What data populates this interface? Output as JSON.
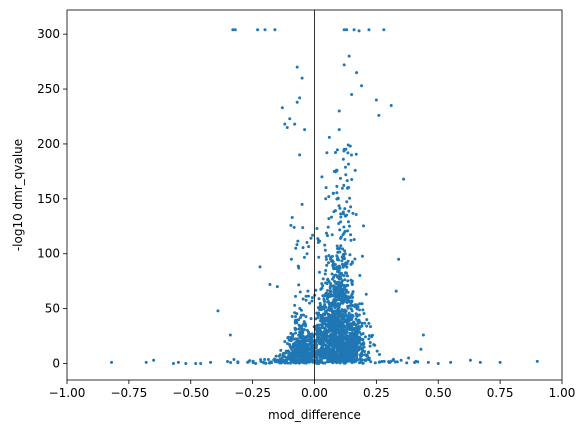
{
  "chart_data": {
    "type": "scatter",
    "title": "",
    "xlabel": "mod_difference",
    "ylabel": "-log10 dmr_qvalue",
    "xlim": [
      -1.0,
      1.0
    ],
    "ylim": [
      -15,
      322
    ],
    "xticks": [
      -1.0,
      -0.75,
      -0.5,
      -0.25,
      0.0,
      0.25,
      0.5,
      0.75,
      1.0
    ],
    "xtick_labels": [
      "−1.00",
      "−0.75",
      "−0.50",
      "−0.25",
      "0.00",
      "0.25",
      "0.50",
      "0.75",
      "1.00"
    ],
    "yticks": [
      0,
      50,
      100,
      150,
      200,
      250,
      300
    ],
    "ytick_labels": [
      "0",
      "50",
      "100",
      "150",
      "200",
      "250",
      "300"
    ],
    "vertical_reference_line_x": 0.0,
    "grid": false,
    "marker_color": "#1f77b4",
    "series": [
      {
        "values_representative": [
          {
            "x": -0.82,
            "y": 1
          },
          {
            "x": -0.68,
            "y": 1
          },
          {
            "x": -0.65,
            "y": 3
          },
          {
            "x": -0.57,
            "y": 0
          },
          {
            "x": -0.55,
            "y": 1
          },
          {
            "x": -0.52,
            "y": 0
          },
          {
            "x": -0.48,
            "y": 0
          },
          {
            "x": -0.46,
            "y": 0
          },
          {
            "x": -0.42,
            "y": 1
          },
          {
            "x": -0.39,
            "y": 48
          },
          {
            "x": -0.34,
            "y": 26
          },
          {
            "x": -0.33,
            "y": 304
          },
          {
            "x": -0.32,
            "y": 304
          },
          {
            "x": -0.27,
            "y": 1
          },
          {
            "x": -0.23,
            "y": 304
          },
          {
            "x": -0.22,
            "y": 88
          },
          {
            "x": -0.2,
            "y": 304
          },
          {
            "x": -0.18,
            "y": 72
          },
          {
            "x": -0.16,
            "y": 304
          },
          {
            "x": -0.15,
            "y": 70
          },
          {
            "x": -0.13,
            "y": 233
          },
          {
            "x": -0.12,
            "y": 20
          },
          {
            "x": -0.12,
            "y": 218
          },
          {
            "x": -0.11,
            "y": 215
          },
          {
            "x": -0.1,
            "y": 223
          },
          {
            "x": -0.09,
            "y": 133
          },
          {
            "x": -0.08,
            "y": 218
          },
          {
            "x": -0.07,
            "y": 270
          },
          {
            "x": -0.07,
            "y": 238
          },
          {
            "x": -0.06,
            "y": 242
          },
          {
            "x": -0.06,
            "y": 190
          },
          {
            "x": -0.05,
            "y": 260
          },
          {
            "x": -0.05,
            "y": 145
          },
          {
            "x": -0.04,
            "y": 213
          },
          {
            "x": -0.03,
            "y": 100
          },
          {
            "x": -0.02,
            "y": 55
          },
          {
            "x": 0.01,
            "y": 123
          },
          {
            "x": 0.03,
            "y": 170
          },
          {
            "x": 0.05,
            "y": 192
          },
          {
            "x": 0.06,
            "y": 206
          },
          {
            "x": 0.08,
            "y": 175
          },
          {
            "x": 0.1,
            "y": 230
          },
          {
            "x": 0.1,
            "y": 213
          },
          {
            "x": 0.12,
            "y": 272
          },
          {
            "x": 0.12,
            "y": 304
          },
          {
            "x": 0.13,
            "y": 304
          },
          {
            "x": 0.14,
            "y": 280
          },
          {
            "x": 0.15,
            "y": 245
          },
          {
            "x": 0.16,
            "y": 304
          },
          {
            "x": 0.17,
            "y": 265
          },
          {
            "x": 0.18,
            "y": 303
          },
          {
            "x": 0.19,
            "y": 253
          },
          {
            "x": 0.22,
            "y": 304
          },
          {
            "x": 0.25,
            "y": 240
          },
          {
            "x": 0.26,
            "y": 226
          },
          {
            "x": 0.28,
            "y": 304
          },
          {
            "x": 0.31,
            "y": 235
          },
          {
            "x": 0.36,
            "y": 168
          },
          {
            "x": 0.34,
            "y": 95
          },
          {
            "x": 0.33,
            "y": 66
          },
          {
            "x": 0.35,
            "y": 3
          },
          {
            "x": 0.38,
            "y": 5
          },
          {
            "x": 0.41,
            "y": 2
          },
          {
            "x": 0.43,
            "y": 13
          },
          {
            "x": 0.44,
            "y": 26
          },
          {
            "x": 0.46,
            "y": 1
          },
          {
            "x": 0.5,
            "y": 0
          },
          {
            "x": 0.55,
            "y": 1
          },
          {
            "x": 0.63,
            "y": 3
          },
          {
            "x": 0.67,
            "y": 1
          },
          {
            "x": 0.75,
            "y": 1
          },
          {
            "x": 0.9,
            "y": 2
          }
        ]
      }
    ]
  }
}
